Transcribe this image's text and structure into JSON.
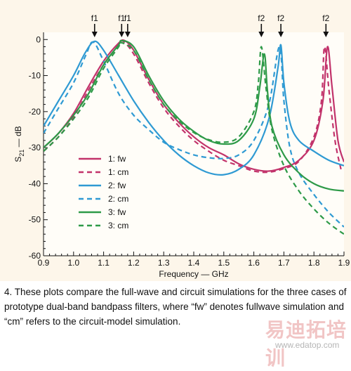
{
  "chart_data": {
    "type": "line",
    "ylabel_main": "S",
    "ylabel_sub": "21",
    "ylabel_unit": " — dB",
    "xlabel": "Frequency — GHz",
    "xlim": [
      0.9,
      1.9
    ],
    "ylim": [
      -60,
      2
    ],
    "x_ticks": [
      "0.9",
      "1.0",
      "1.1",
      "1.2",
      "1.3",
      "1.4",
      "1.5",
      "1.6",
      "1.7",
      "1.8",
      "1.9"
    ],
    "y_ticks": [
      "0",
      "-10",
      "-20",
      "-30",
      "-40",
      "-50",
      "-60"
    ],
    "annotations": [
      {
        "text": "f1",
        "x": 1.07
      },
      {
        "text": "f1",
        "x": 1.16
      },
      {
        "text": "f1",
        "x": 1.18
      },
      {
        "text": "f2",
        "x": 1.625
      },
      {
        "text": "f2",
        "x": 1.69
      },
      {
        "text": "f2",
        "x": 1.84
      }
    ],
    "series": [
      {
        "name": "1: fw",
        "color": "#c2336b",
        "dash": false,
        "points": [
          [
            0.9,
            -30
          ],
          [
            0.95,
            -26
          ],
          [
            1.0,
            -20.5
          ],
          [
            1.05,
            -13
          ],
          [
            1.1,
            -6
          ],
          [
            1.15,
            -1
          ],
          [
            1.17,
            -0.3
          ],
          [
            1.2,
            -3
          ],
          [
            1.25,
            -11
          ],
          [
            1.3,
            -18
          ],
          [
            1.35,
            -23
          ],
          [
            1.4,
            -27
          ],
          [
            1.45,
            -30
          ],
          [
            1.5,
            -32
          ],
          [
            1.55,
            -34.5
          ],
          [
            1.6,
            -36
          ],
          [
            1.65,
            -36.5
          ],
          [
            1.7,
            -35.5
          ],
          [
            1.75,
            -33.5
          ],
          [
            1.8,
            -28
          ],
          [
            1.83,
            -17
          ],
          [
            1.845,
            -2
          ],
          [
            1.86,
            -13
          ],
          [
            1.88,
            -28
          ],
          [
            1.9,
            -34
          ]
        ]
      },
      {
        "name": "1: cm",
        "color": "#c2336b",
        "dash": true,
        "points": [
          [
            0.9,
            -31
          ],
          [
            0.95,
            -27
          ],
          [
            1.0,
            -21.5
          ],
          [
            1.05,
            -14
          ],
          [
            1.1,
            -7
          ],
          [
            1.15,
            -1.5
          ],
          [
            1.165,
            -0.5
          ],
          [
            1.2,
            -4
          ],
          [
            1.25,
            -12
          ],
          [
            1.3,
            -19
          ],
          [
            1.35,
            -24
          ],
          [
            1.4,
            -28
          ],
          [
            1.45,
            -31
          ],
          [
            1.5,
            -33.5
          ],
          [
            1.55,
            -35
          ],
          [
            1.6,
            -36.5
          ],
          [
            1.65,
            -36.8
          ],
          [
            1.7,
            -35.8
          ],
          [
            1.75,
            -33.8
          ],
          [
            1.8,
            -27
          ],
          [
            1.825,
            -17
          ],
          [
            1.835,
            -2
          ],
          [
            1.85,
            -14
          ],
          [
            1.87,
            -28
          ],
          [
            1.89,
            -36
          ]
        ]
      },
      {
        "name": "2: fw",
        "color": "#2f9ad3",
        "dash": false,
        "points": [
          [
            0.9,
            -24
          ],
          [
            0.95,
            -17
          ],
          [
            1.0,
            -10
          ],
          [
            1.04,
            -3.5
          ],
          [
            1.07,
            -0.5
          ],
          [
            1.1,
            -3
          ],
          [
            1.15,
            -10
          ],
          [
            1.2,
            -17
          ],
          [
            1.25,
            -23
          ],
          [
            1.3,
            -28
          ],
          [
            1.35,
            -32
          ],
          [
            1.4,
            -35
          ],
          [
            1.45,
            -37
          ],
          [
            1.5,
            -37.5
          ],
          [
            1.55,
            -36
          ],
          [
            1.6,
            -32
          ],
          [
            1.65,
            -22
          ],
          [
            1.68,
            -8
          ],
          [
            1.69,
            -1.5
          ],
          [
            1.7,
            -12
          ],
          [
            1.72,
            -23
          ],
          [
            1.75,
            -28
          ],
          [
            1.8,
            -31
          ],
          [
            1.85,
            -33.5
          ],
          [
            1.9,
            -35
          ]
        ]
      },
      {
        "name": "2: cm",
        "color": "#2f9ad3",
        "dash": true,
        "points": [
          [
            0.9,
            -26
          ],
          [
            0.95,
            -19
          ],
          [
            1.0,
            -12
          ],
          [
            1.04,
            -4.5
          ],
          [
            1.065,
            -0.7
          ],
          [
            1.1,
            -6
          ],
          [
            1.15,
            -15
          ],
          [
            1.2,
            -21
          ],
          [
            1.25,
            -25
          ],
          [
            1.3,
            -28.5
          ],
          [
            1.35,
            -30.5
          ],
          [
            1.4,
            -32
          ],
          [
            1.45,
            -32.8
          ],
          [
            1.5,
            -33
          ],
          [
            1.55,
            -32
          ],
          [
            1.6,
            -28
          ],
          [
            1.65,
            -18
          ],
          [
            1.685,
            -2
          ],
          [
            1.7,
            -17
          ],
          [
            1.72,
            -30
          ],
          [
            1.75,
            -37
          ],
          [
            1.8,
            -43
          ],
          [
            1.85,
            -48
          ],
          [
            1.9,
            -52
          ]
        ]
      },
      {
        "name": "3: fw",
        "color": "#2e9a48",
        "dash": false,
        "points": [
          [
            0.9,
            -30
          ],
          [
            0.95,
            -26
          ],
          [
            1.0,
            -21
          ],
          [
            1.05,
            -15
          ],
          [
            1.1,
            -7
          ],
          [
            1.15,
            -1.5
          ],
          [
            1.16,
            -0.3
          ],
          [
            1.2,
            -2
          ],
          [
            1.25,
            -10
          ],
          [
            1.3,
            -17
          ],
          [
            1.35,
            -22
          ],
          [
            1.4,
            -25.5
          ],
          [
            1.45,
            -28
          ],
          [
            1.5,
            -29
          ],
          [
            1.55,
            -28
          ],
          [
            1.6,
            -22
          ],
          [
            1.62,
            -13
          ],
          [
            1.635,
            -4
          ],
          [
            1.645,
            -14
          ],
          [
            1.66,
            -24
          ],
          [
            1.7,
            -32
          ],
          [
            1.75,
            -37
          ],
          [
            1.8,
            -40
          ],
          [
            1.85,
            -41.5
          ],
          [
            1.9,
            -42
          ]
        ]
      },
      {
        "name": "3: cm",
        "color": "#2e9a48",
        "dash": true,
        "points": [
          [
            0.9,
            -31
          ],
          [
            0.95,
            -27
          ],
          [
            1.0,
            -22
          ],
          [
            1.05,
            -16
          ],
          [
            1.1,
            -8
          ],
          [
            1.15,
            -2
          ],
          [
            1.155,
            -0.8
          ],
          [
            1.2,
            -3
          ],
          [
            1.25,
            -11
          ],
          [
            1.3,
            -18
          ],
          [
            1.35,
            -22.5
          ],
          [
            1.4,
            -25.8
          ],
          [
            1.45,
            -27.8
          ],
          [
            1.5,
            -28.5
          ],
          [
            1.55,
            -27
          ],
          [
            1.6,
            -20
          ],
          [
            1.615,
            -12
          ],
          [
            1.625,
            -2
          ],
          [
            1.64,
            -13
          ],
          [
            1.66,
            -25
          ],
          [
            1.7,
            -35
          ],
          [
            1.75,
            -42
          ],
          [
            1.8,
            -47
          ],
          [
            1.85,
            -51
          ],
          [
            1.9,
            -54
          ]
        ]
      }
    ]
  },
  "caption": {
    "text": "4. These plots compare the full-wave and circuit simulations for the three cases of prototype dual-band bandpass filters, where “fw” denotes fullwave simulation and “cm” refers to the circuit-model simulation."
  },
  "watermark": {
    "cn": "易迪拓培训",
    "url": "www.edatop.com"
  }
}
